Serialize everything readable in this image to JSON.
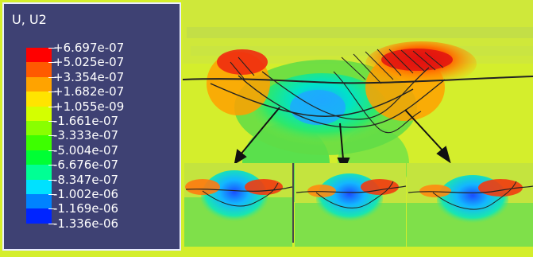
{
  "legend": {
    "title": "U, U2",
    "values": [
      "+6.697e-07",
      "+5.025e-07",
      "+3.354e-07",
      "+1.682e-07",
      "+1.055e-09",
      "-1.661e-07",
      "-3.333e-07",
      "-5.004e-07",
      "-6.676e-07",
      "-8.347e-07",
      "-1.002e-06",
      "-1.169e-06",
      "-1.336e-06"
    ],
    "band_colors": [
      "#ff0000",
      "#ff5a00",
      "#ffa300",
      "#ffe400",
      "#d4ff00",
      "#89ff00",
      "#3dff00",
      "#00ff34",
      "#00ff94",
      "#00e1ff",
      "#0083ff",
      "#0024ff"
    ]
  },
  "colors": {
    "background": "#d8ef2a",
    "panel": "#3e4173",
    "outline": "#1a1a1a"
  }
}
